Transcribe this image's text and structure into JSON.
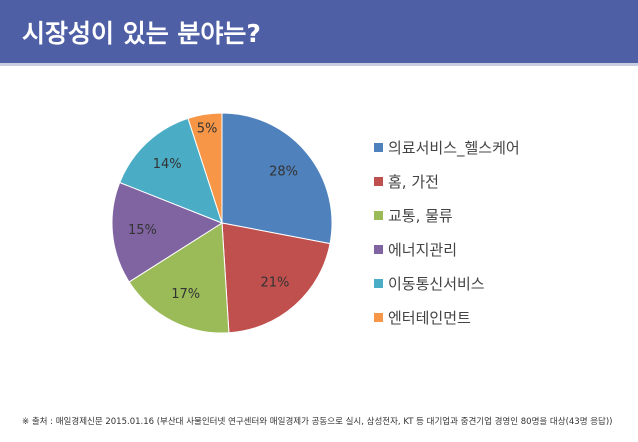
{
  "title": "시장성이 있는 분야는?",
  "chart_data": {
    "type": "pie",
    "categories": [
      "의료서비스_헬스케어",
      "홈, 가전",
      "교통, 물류",
      "에너지관리",
      "이동통신서비스",
      "엔터테인먼트"
    ],
    "values": [
      28,
      21,
      17,
      15,
      14,
      5
    ],
    "data_labels": [
      "28%",
      "21%",
      "17%",
      "15%",
      "14%",
      "5%"
    ],
    "colors": [
      "#4f81bd",
      "#c0504d",
      "#9bbb59",
      "#8064a2",
      "#4bacc6",
      "#f79646"
    ],
    "legend_position": "right"
  },
  "legend": [
    {
      "label": "의료서비스_헬스케어",
      "color": "#4f81bd"
    },
    {
      "label": "홈, 가전",
      "color": "#c0504d"
    },
    {
      "label": "교통, 물류",
      "color": "#9bbb59"
    },
    {
      "label": "에너지관리",
      "color": "#8064a2"
    },
    {
      "label": "이동통신서비스",
      "color": "#4bacc6"
    },
    {
      "label": "엔터테인먼트",
      "color": "#f79646"
    }
  ],
  "footer": "※ 출처 : 매일경제신문 2015.01.16 (부산대 사물인터넷 연구센터와 매일경제가 공동으로 실시, 삼성전자, KT 등 대기업과 중견기업 경영인 80명을 대상(43명 응답))"
}
